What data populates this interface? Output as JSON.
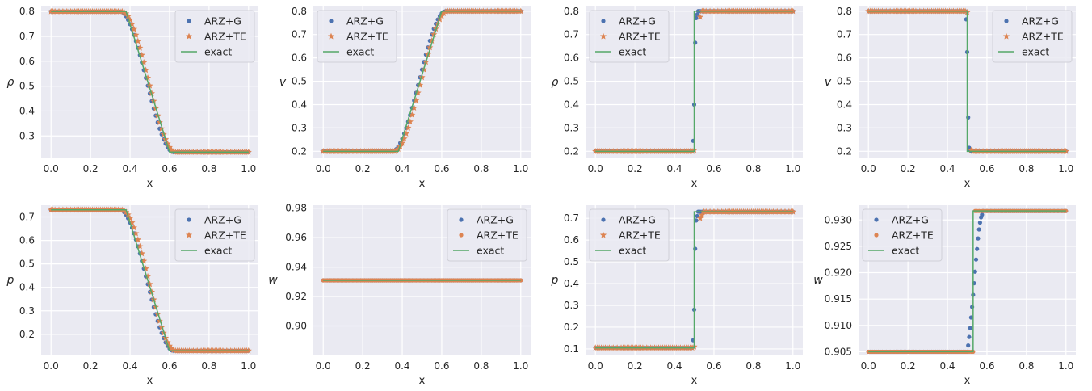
{
  "colors": {
    "panel_bg": "#eaeaf2",
    "grid": "#ffffff",
    "text": "#262626",
    "arz_g": "#4c72b0",
    "arz_te": "#dd8452",
    "exact": "#55a868"
  },
  "chart_data": [
    {
      "type": "line",
      "ylabel": "ρ",
      "xlabel": "x",
      "xlim": [
        -0.05,
        1.05
      ],
      "ylim": [
        0.21,
        0.82
      ],
      "xticks": [
        "0.0",
        "0.2",
        "0.4",
        "0.6",
        "0.8",
        "1.0"
      ],
      "yticks": [
        "0.3",
        "0.4",
        "0.5",
        "0.6",
        "0.7",
        "0.8"
      ],
      "legend": {
        "loc": "upper right",
        "entries": [
          "ARZ+G",
          "ARZ+TE",
          "exact"
        ]
      },
      "series": [
        {
          "name": "ARZ+G",
          "marker": "dot",
          "shape": "rarefaction",
          "left": 0.8,
          "right": 0.235,
          "x_start": 0.35,
          "x_end": 0.62,
          "n": 100
        },
        {
          "name": "ARZ+TE",
          "marker": "star",
          "shape": "rarefaction",
          "left": 0.8,
          "right": 0.235,
          "x_start": 0.36,
          "x_end": 0.63,
          "n": 100
        },
        {
          "name": "exact",
          "marker": "line",
          "points": [
            [
              0,
              0.8
            ],
            [
              0.38,
              0.8
            ],
            [
              0.6,
              0.235
            ],
            [
              1.0,
              0.235
            ]
          ]
        }
      ]
    },
    {
      "type": "line",
      "ylabel": "v",
      "xlabel": "x",
      "xlim": [
        -0.05,
        1.05
      ],
      "ylim": [
        0.17,
        0.82
      ],
      "xticks": [
        "0.0",
        "0.2",
        "0.4",
        "0.6",
        "0.8",
        "1.0"
      ],
      "yticks": [
        "0.2",
        "0.3",
        "0.4",
        "0.5",
        "0.6",
        "0.7",
        "0.8"
      ],
      "legend": {
        "loc": "upper left",
        "entries": [
          "ARZ+G",
          "ARZ+TE",
          "exact"
        ]
      },
      "series": [
        {
          "name": "ARZ+G",
          "marker": "dot",
          "shape": "rarefaction",
          "left": 0.2,
          "right": 0.8,
          "x_start": 0.35,
          "x_end": 0.62,
          "n": 100
        },
        {
          "name": "ARZ+TE",
          "marker": "star",
          "shape": "rarefaction",
          "left": 0.2,
          "right": 0.8,
          "x_start": 0.36,
          "x_end": 0.63,
          "n": 100
        },
        {
          "name": "exact",
          "marker": "line",
          "points": [
            [
              0,
              0.2
            ],
            [
              0.38,
              0.2
            ],
            [
              0.6,
              0.8
            ],
            [
              1.0,
              0.8
            ]
          ]
        }
      ]
    },
    {
      "type": "line",
      "ylabel": "ρ",
      "xlabel": "x",
      "xlim": [
        -0.05,
        1.05
      ],
      "ylim": [
        0.17,
        0.82
      ],
      "xticks": [
        "0.0",
        "0.2",
        "0.4",
        "0.6",
        "0.8",
        "1.0"
      ],
      "yticks": [
        "0.2",
        "0.3",
        "0.4",
        "0.5",
        "0.6",
        "0.7",
        "0.8"
      ],
      "legend": {
        "loc": "upper left",
        "entries": [
          "ARZ+G",
          "ARZ+TE",
          "exact"
        ]
      },
      "series": [
        {
          "name": "ARZ+G",
          "marker": "dot",
          "shape": "step",
          "left": 0.2,
          "right": 0.8,
          "n": 100,
          "transition": [
            [
              0.495,
              0.245
            ],
            [
              0.5,
              0.4
            ],
            [
              0.505,
              0.665
            ],
            [
              0.51,
              0.77
            ],
            [
              0.515,
              0.785
            ]
          ]
        },
        {
          "name": "ARZ+TE",
          "marker": "star",
          "shape": "step",
          "left": 0.2,
          "right": 0.8,
          "n": 100,
          "transition": [
            [
              0.5,
              0.205
            ],
            [
              0.53,
              0.775
            ]
          ]
        },
        {
          "name": "exact",
          "marker": "line",
          "points": [
            [
              0,
              0.2
            ],
            [
              0.5,
              0.2
            ],
            [
              0.5,
              0.8
            ],
            [
              1.0,
              0.8
            ]
          ]
        }
      ]
    },
    {
      "type": "line",
      "ylabel": "v",
      "xlabel": "x",
      "xlim": [
        -0.05,
        1.05
      ],
      "ylim": [
        0.17,
        0.82
      ],
      "xticks": [
        "0.0",
        "0.2",
        "0.4",
        "0.6",
        "0.8",
        "1.0"
      ],
      "yticks": [
        "0.2",
        "0.3",
        "0.4",
        "0.5",
        "0.6",
        "0.7",
        "0.8"
      ],
      "legend": {
        "loc": "upper right",
        "entries": [
          "ARZ+G",
          "ARZ+TE",
          "exact"
        ]
      },
      "series": [
        {
          "name": "ARZ+G",
          "marker": "dot",
          "shape": "step",
          "left": 0.8,
          "right": 0.2,
          "n": 100,
          "transition": [
            [
              0.495,
              0.765
            ],
            [
              0.5,
              0.625
            ],
            [
              0.505,
              0.345
            ],
            [
              0.51,
              0.215
            ],
            [
              0.515,
              0.205
            ]
          ]
        },
        {
          "name": "ARZ+TE",
          "marker": "star",
          "shape": "step",
          "left": 0.8,
          "right": 0.2,
          "n": 100,
          "transition": [
            [
              0.5,
              0.795
            ],
            [
              0.52,
              0.205
            ]
          ]
        },
        {
          "name": "exact",
          "marker": "line",
          "points": [
            [
              0,
              0.8
            ],
            [
              0.5,
              0.8
            ],
            [
              0.5,
              0.2
            ],
            [
              1.0,
              0.2
            ]
          ]
        }
      ]
    },
    {
      "type": "line",
      "ylabel": "p",
      "xlabel": "x",
      "xlim": [
        -0.05,
        1.05
      ],
      "ylim": [
        0.11,
        0.75
      ],
      "xticks": [
        "0.0",
        "0.2",
        "0.4",
        "0.6",
        "0.8",
        "1.0"
      ],
      "yticks": [
        "0.2",
        "0.3",
        "0.4",
        "0.5",
        "0.6",
        "0.7"
      ],
      "legend": {
        "loc": "upper right",
        "entries": [
          "ARZ+G",
          "ARZ+TE",
          "exact"
        ]
      },
      "series": [
        {
          "name": "ARZ+G",
          "marker": "dot",
          "shape": "rarefaction",
          "left": 0.73,
          "right": 0.13,
          "x_start": 0.35,
          "x_end": 0.62,
          "n": 100
        },
        {
          "name": "ARZ+TE",
          "marker": "star",
          "shape": "rarefaction",
          "left": 0.73,
          "right": 0.13,
          "x_start": 0.36,
          "x_end": 0.63,
          "n": 100
        },
        {
          "name": "exact",
          "marker": "line",
          "points": [
            [
              0,
              0.73
            ],
            [
              0.38,
              0.73
            ],
            [
              0.6,
              0.13
            ],
            [
              1.0,
              0.13
            ]
          ]
        }
      ]
    },
    {
      "type": "line",
      "ylabel": "w",
      "xlabel": "x",
      "xlim": [
        -0.05,
        1.05
      ],
      "ylim": [
        0.88,
        0.982
      ],
      "xticks": [
        "0.0",
        "0.2",
        "0.4",
        "0.6",
        "0.8",
        "1.0"
      ],
      "yticks": [
        "0.90",
        "0.92",
        "0.94",
        "0.96",
        "0.98"
      ],
      "legend": {
        "loc": "upper right",
        "entries": [
          "ARZ+G",
          "ARZ+TE",
          "exact"
        ]
      },
      "series": [
        {
          "name": "ARZ+G",
          "marker": "dot",
          "shape": "flat",
          "left": 0.931,
          "right": 0.931,
          "n": 100
        },
        {
          "name": "ARZ+TE",
          "marker": "dot",
          "shape": "flat",
          "left": 0.931,
          "right": 0.931,
          "n": 100
        },
        {
          "name": "exact",
          "marker": "line",
          "points": [
            [
              0,
              0.931
            ],
            [
              1.0,
              0.931
            ]
          ]
        }
      ]
    },
    {
      "type": "line",
      "ylabel": "p",
      "xlabel": "x",
      "xlim": [
        -0.05,
        1.05
      ],
      "ylim": [
        0.07,
        0.76
      ],
      "xticks": [
        "0.0",
        "0.2",
        "0.4",
        "0.6",
        "0.8",
        "1.0"
      ],
      "yticks": [
        "0.1",
        "0.2",
        "0.3",
        "0.4",
        "0.5",
        "0.6",
        "0.7"
      ],
      "legend": {
        "loc": "upper left",
        "entries": [
          "ARZ+G",
          "ARZ+TE",
          "exact"
        ]
      },
      "series": [
        {
          "name": "ARZ+G",
          "marker": "dot",
          "shape": "step",
          "left": 0.105,
          "right": 0.73,
          "n": 100,
          "transition": [
            [
              0.495,
              0.14
            ],
            [
              0.5,
              0.28
            ],
            [
              0.505,
              0.56
            ],
            [
              0.51,
              0.69
            ],
            [
              0.515,
              0.71
            ]
          ]
        },
        {
          "name": "ARZ+TE",
          "marker": "star",
          "shape": "step",
          "left": 0.105,
          "right": 0.73,
          "n": 100,
          "transition": [
            [
              0.5,
              0.11
            ],
            [
              0.53,
              0.7
            ],
            [
              0.54,
              0.715
            ]
          ]
        },
        {
          "name": "exact",
          "marker": "line",
          "points": [
            [
              0,
              0.105
            ],
            [
              0.5,
              0.105
            ],
            [
              0.5,
              0.73
            ],
            [
              1.0,
              0.73
            ]
          ]
        }
      ]
    },
    {
      "type": "line",
      "ylabel": "w",
      "xlabel": "x",
      "xlim": [
        -0.05,
        1.05
      ],
      "ylim": [
        0.9043,
        0.9328
      ],
      "xticks": [
        "0.0",
        "0.2",
        "0.4",
        "0.6",
        "0.8",
        "1.0"
      ],
      "yticks": [
        "0.905",
        "0.910",
        "0.915",
        "0.920",
        "0.925",
        "0.930"
      ],
      "legend": {
        "loc": "upper left",
        "entries": [
          "ARZ+G",
          "ARZ+TE",
          "exact"
        ]
      },
      "series": [
        {
          "name": "ARZ+G",
          "marker": "dot",
          "shape": "step",
          "left": 0.905,
          "right": 0.9317,
          "n": 100,
          "transition": [
            [
              0.505,
              0.9062
            ],
            [
              0.51,
              0.9078
            ],
            [
              0.515,
              0.9095
            ],
            [
              0.52,
              0.9115
            ],
            [
              0.525,
              0.9135
            ],
            [
              0.53,
              0.9158
            ],
            [
              0.535,
              0.918
            ],
            [
              0.54,
              0.9202
            ],
            [
              0.545,
              0.9225
            ],
            [
              0.55,
              0.9245
            ],
            [
              0.555,
              0.9265
            ],
            [
              0.56,
              0.9282
            ],
            [
              0.565,
              0.9295
            ],
            [
              0.57,
              0.9305
            ],
            [
              0.575,
              0.931
            ]
          ]
        },
        {
          "name": "ARZ+TE",
          "marker": "dot",
          "shape": "step",
          "left": 0.905,
          "right": 0.9317,
          "n": 100,
          "transition": [
            [
              0.53,
              0.905
            ]
          ]
        },
        {
          "name": "exact",
          "marker": "line",
          "points": [
            [
              0,
              0.905
            ],
            [
              0.53,
              0.905
            ],
            [
              0.53,
              0.9317
            ],
            [
              1.0,
              0.9317
            ]
          ]
        }
      ]
    }
  ]
}
